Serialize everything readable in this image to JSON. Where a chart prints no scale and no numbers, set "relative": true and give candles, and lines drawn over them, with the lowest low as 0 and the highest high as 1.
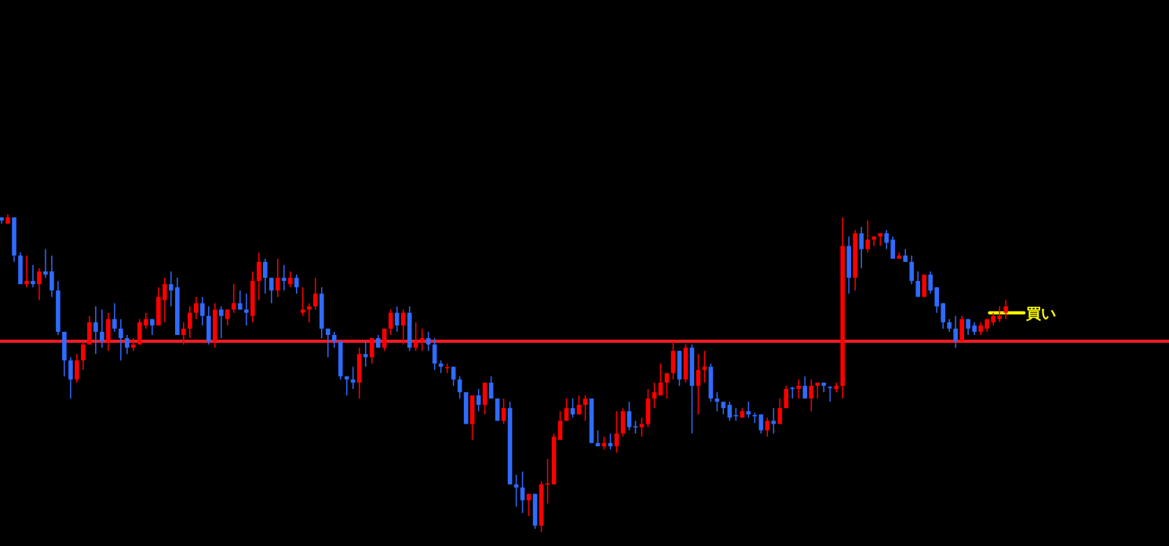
{
  "chart_data": {
    "type": "candlestick",
    "relative": true,
    "categories": [
      null,
      null,
      null,
      null,
      null,
      null,
      null,
      null,
      null,
      null,
      null,
      null,
      null,
      null,
      null,
      null,
      null,
      null,
      null,
      null,
      null,
      null,
      null,
      null,
      null,
      null,
      null,
      null,
      null,
      null,
      null,
      null,
      null,
      null,
      null,
      null,
      null,
      null,
      null,
      null,
      null,
      null,
      null,
      null,
      null,
      null,
      null,
      null,
      null,
      null,
      null,
      null,
      null,
      null,
      null,
      null,
      null,
      null,
      null,
      null,
      null,
      null,
      null,
      null,
      null,
      null,
      null,
      null,
      null,
      null,
      null,
      null,
      null,
      null,
      null,
      null,
      null,
      null,
      null,
      null,
      null,
      null,
      null,
      null,
      null,
      null,
      null,
      null,
      null,
      null,
      null,
      null,
      null,
      null,
      null,
      null,
      null,
      null,
      null,
      null,
      null,
      null,
      null,
      null,
      null,
      null,
      null,
      null,
      null,
      null,
      null,
      null,
      null,
      null,
      null,
      null,
      null,
      null,
      null,
      null,
      null,
      null,
      null,
      null,
      null,
      null,
      null,
      null,
      null,
      null,
      null,
      null,
      null,
      null,
      null,
      null,
      null,
      null,
      null,
      null,
      null,
      null,
      null,
      null,
      null,
      null,
      null,
      null,
      null,
      null,
      null,
      null,
      null,
      null,
      null,
      null,
      null,
      null,
      null,
      null,
      null
    ],
    "ohlc": [
      [
        0.99,
        0.99,
        0.97,
        0.98
      ],
      [
        0.97,
        1,
        0.97,
        0.99
      ],
      [
        0.99,
        0.99,
        0.85,
        0.87
      ],
      [
        0.87,
        0.88,
        0.78,
        0.78
      ],
      [
        0.78,
        0.87,
        0.77,
        0.79
      ],
      [
        0.79,
        0.84,
        0.77,
        0.78
      ],
      [
        0.78,
        0.83,
        0.73,
        0.82
      ],
      [
        0.82,
        0.89,
        0.8,
        0.81
      ],
      [
        0.82,
        0.87,
        0.74,
        0.76
      ],
      [
        0.76,
        0.79,
        0.62,
        0.63
      ],
      [
        0.63,
        0.63,
        0.49,
        0.54
      ],
      [
        0.54,
        0.55,
        0.42,
        0.48
      ],
      [
        0.48,
        0.56,
        0.47,
        0.54
      ],
      [
        0.54,
        0.6,
        0.51,
        0.59
      ],
      [
        0.59,
        0.68,
        0.59,
        0.66
      ],
      [
        0.66,
        0.71,
        0.56,
        0.63
      ],
      [
        0.63,
        0.7,
        0.58,
        0.6
      ],
      [
        0.6,
        0.69,
        0.57,
        0.67
      ],
      [
        0.67,
        0.72,
        0.63,
        0.64
      ],
      [
        0.64,
        0.67,
        0.54,
        0.61
      ],
      [
        0.61,
        0.62,
        0.56,
        0.58
      ],
      [
        0.58,
        0.61,
        0.57,
        0.59
      ],
      [
        0.59,
        0.67,
        0.59,
        0.66
      ],
      [
        0.65,
        0.69,
        0.64,
        0.67
      ],
      [
        0.67,
        0.67,
        0.62,
        0.65
      ],
      [
        0.65,
        0.77,
        0.65,
        0.74
      ],
      [
        0.73,
        0.8,
        0.66,
        0.78
      ],
      [
        0.78,
        0.82,
        0.71,
        0.76
      ],
      [
        0.77,
        0.8,
        0.62,
        0.62
      ],
      [
        0.62,
        0.66,
        0.59,
        0.64
      ],
      [
        0.64,
        0.71,
        0.61,
        0.69
      ],
      [
        0.69,
        0.74,
        0.67,
        0.72
      ],
      [
        0.72,
        0.74,
        0.65,
        0.68
      ],
      [
        0.68,
        0.71,
        0.59,
        0.6
      ],
      [
        0.6,
        0.72,
        0.58,
        0.7
      ],
      [
        0.7,
        0.71,
        0.61,
        0.68
      ],
      [
        0.67,
        0.7,
        0.65,
        0.7
      ],
      [
        0.7,
        0.78,
        0.69,
        0.72
      ],
      [
        0.72,
        0.76,
        0.7,
        0.7
      ],
      [
        0.7,
        0.75,
        0.65,
        0.69
      ],
      [
        0.68,
        0.82,
        0.66,
        0.79
      ],
      [
        0.79,
        0.88,
        0.73,
        0.85
      ],
      [
        0.85,
        0.86,
        0.75,
        0.8
      ],
      [
        0.8,
        0.8,
        0.72,
        0.76
      ],
      [
        0.76,
        0.86,
        0.74,
        0.8
      ],
      [
        0.8,
        0.84,
        0.76,
        0.79
      ],
      [
        0.78,
        0.82,
        0.77,
        0.8
      ],
      [
        0.8,
        0.81,
        0.75,
        0.77
      ],
      [
        0.69,
        0.77,
        0.68,
        0.7
      ],
      [
        0.7,
        0.72,
        0.66,
        0.71
      ],
      [
        0.71,
        0.8,
        0.7,
        0.75
      ],
      [
        0.75,
        0.77,
        0.61,
        0.64
      ],
      [
        0.64,
        0.64,
        0.55,
        0.62
      ],
      [
        0.62,
        0.63,
        0.58,
        0.6
      ],
      [
        0.6,
        0.6,
        0.48,
        0.49
      ],
      [
        0.49,
        0.49,
        0.43,
        0.48
      ],
      [
        0.48,
        0.52,
        0.45,
        0.47
      ],
      [
        0.47,
        0.58,
        0.42,
        0.56
      ],
      [
        0.56,
        0.6,
        0.52,
        0.55
      ],
      [
        0.55,
        0.61,
        0.53,
        0.61
      ],
      [
        0.61,
        0.62,
        0.58,
        0.58
      ],
      [
        0.58,
        0.64,
        0.57,
        0.64
      ],
      [
        0.64,
        0.7,
        0.62,
        0.69
      ],
      [
        0.69,
        0.71,
        0.63,
        0.65
      ],
      [
        0.65,
        0.7,
        0.59,
        0.69
      ],
      [
        0.69,
        0.71,
        0.57,
        0.58
      ],
      [
        0.58,
        0.66,
        0.57,
        0.6
      ],
      [
        0.6,
        0.64,
        0.57,
        0.61
      ],
      [
        0.61,
        0.63,
        0.57,
        0.59
      ],
      [
        0.59,
        0.61,
        0.51,
        0.53
      ],
      [
        0.53,
        0.54,
        0.5,
        0.52
      ],
      [
        0.516,
        0.53,
        0.5,
        0.519
      ],
      [
        0.52,
        0.52,
        0.46,
        0.48
      ],
      [
        0.48,
        0.49,
        0.42,
        0.44
      ],
      [
        0.44,
        0.44,
        0.34,
        0.34
      ],
      [
        0.34,
        0.43,
        0.29,
        0.43
      ],
      [
        0.43,
        0.45,
        0.38,
        0.4
      ],
      [
        0.4,
        0.47,
        0.37,
        0.47
      ],
      [
        0.47,
        0.49,
        0.42,
        0.42
      ],
      [
        0.42,
        0.42,
        0.35,
        0.35
      ],
      [
        0.35,
        0.42,
        0.34,
        0.39
      ],
      [
        0.39,
        0.41,
        0.15,
        0.15
      ],
      [
        0.15,
        0.18,
        0.08,
        0.14
      ],
      [
        0.14,
        0.19,
        0.06,
        0.1
      ],
      [
        0.1,
        0.12,
        0.05,
        0.12
      ],
      [
        0.12,
        0.12,
        0.01,
        0.02
      ],
      [
        0.02,
        0.16,
        0,
        0.15
      ],
      [
        0.151,
        0.23,
        0.09,
        0.153
      ],
      [
        0.15,
        0.31,
        0.15,
        0.3
      ],
      [
        0.29,
        0.38,
        0.29,
        0.35
      ],
      [
        0.35,
        0.42,
        0.35,
        0.39
      ],
      [
        0.39,
        0.42,
        0.36,
        0.37
      ],
      [
        0.37,
        0.43,
        0.37,
        0.4
      ],
      [
        0.4,
        0.43,
        0.35,
        0.42
      ],
      [
        0.42,
        0.42,
        0.28,
        0.28
      ],
      [
        0.28,
        0.32,
        0.27,
        0.27
      ],
      [
        0.27,
        0.3,
        0.26,
        0.28
      ],
      [
        0.28,
        0.31,
        0.26,
        0.27
      ],
      [
        0.27,
        0.38,
        0.25,
        0.31
      ],
      [
        0.31,
        0.39,
        0.3,
        0.38
      ],
      [
        0.38,
        0.41,
        0.32,
        0.33
      ],
      [
        0.333,
        0.35,
        0.31,
        0.331
      ],
      [
        0.33,
        0.36,
        0.3,
        0.34
      ],
      [
        0.34,
        0.45,
        0.33,
        0.42
      ],
      [
        0.42,
        0.47,
        0.39,
        0.44
      ],
      [
        0.43,
        0.53,
        0.43,
        0.47
      ],
      [
        0.47,
        0.5,
        0.42,
        0.5
      ],
      [
        0.5,
        0.6,
        0.48,
        0.57
      ],
      [
        0.57,
        0.57,
        0.46,
        0.48
      ],
      [
        0.48,
        0.59,
        0.47,
        0.58
      ],
      [
        0.58,
        0.59,
        0.31,
        0.46
      ],
      [
        0.46,
        0.56,
        0.37,
        0.51
      ],
      [
        0.51,
        0.57,
        0.47,
        0.52
      ],
      [
        0.52,
        0.53,
        0.41,
        0.42
      ],
      [
        0.42,
        0.44,
        0.38,
        0.41
      ],
      [
        0.41,
        0.41,
        0.37,
        0.39
      ],
      [
        0.4,
        0.41,
        0.35,
        0.36
      ],
      [
        0.368,
        0.39,
        0.35,
        0.365
      ],
      [
        0.36,
        0.39,
        0.36,
        0.38
      ],
      [
        0.38,
        0.41,
        0.36,
        0.37
      ],
      [
        0.368,
        0.375,
        0.343,
        0.365
      ],
      [
        0.37,
        0.37,
        0.31,
        0.32
      ],
      [
        0.32,
        0.36,
        0.3,
        0.35
      ],
      [
        0.35,
        0.39,
        0.31,
        0.34
      ],
      [
        0.34,
        0.42,
        0.34,
        0.39
      ],
      [
        0.39,
        0.46,
        0.39,
        0.45
      ],
      [
        0.454,
        0.457,
        0.42,
        0.452
      ],
      [
        0.45,
        0.48,
        0.42,
        0.46
      ],
      [
        0.46,
        0.49,
        0.42,
        0.42
      ],
      [
        0.42,
        0.48,
        0.38,
        0.46
      ],
      [
        0.46,
        0.47,
        0.42,
        0.47
      ],
      [
        0.47,
        0.47,
        0.44,
        0.46
      ],
      [
        0.457,
        0.459,
        0.41,
        0.454
      ],
      [
        0.45,
        0.47,
        0.44,
        0.46
      ],
      [
        0.46,
        0.99,
        0.42,
        0.9
      ],
      [
        0.9,
        0.93,
        0.75,
        0.8
      ],
      [
        0.8,
        0.95,
        0.76,
        0.94
      ],
      [
        0.94,
        0.96,
        0.83,
        0.89
      ],
      [
        0.89,
        0.98,
        0.88,
        0.92
      ],
      [
        0.92,
        0.93,
        0.9,
        0.93
      ],
      [
        0.93,
        0.94,
        0.9,
        0.94
      ],
      [
        0.94,
        0.95,
        0.89,
        0.91
      ],
      [
        0.92,
        0.93,
        0.86,
        0.86
      ],
      [
        0.86,
        0.88,
        0.86,
        0.87
      ],
      [
        0.87,
        0.89,
        0.85,
        0.85
      ],
      [
        0.85,
        0.87,
        0.78,
        0.79
      ],
      [
        0.79,
        0.82,
        0.74,
        0.74
      ],
      [
        0.74,
        0.81,
        0.74,
        0.81
      ],
      [
        0.81,
        0.82,
        0.75,
        0.76
      ],
      [
        0.77,
        0.77,
        0.69,
        0.71
      ],
      [
        0.72,
        0.72,
        0.64,
        0.66
      ],
      [
        0.66,
        0.67,
        0.63,
        0.64
      ],
      [
        0.64,
        0.68,
        0.58,
        0.6
      ],
      [
        0.6,
        0.68,
        0.6,
        0.67
      ],
      [
        0.67,
        0.67,
        0.62,
        0.64
      ],
      [
        0.65,
        0.66,
        0.62,
        0.63
      ],
      [
        0.63,
        0.66,
        0.62,
        0.65
      ],
      [
        0.64,
        0.67,
        0.63,
        0.67
      ],
      [
        0.66,
        0.69,
        0.65,
        0.68
      ],
      [
        0.67,
        0.71,
        0.66,
        0.68
      ],
      [
        0.69,
        0.73,
        0.67,
        0.71
      ]
    ],
    "ref_lines": [
      {
        "axis": "y",
        "value": 0.6,
        "color": "#ee1c25"
      },
      {
        "axis": "y",
        "value": 0.69,
        "color": "#ffff00",
        "label": "買い"
      }
    ]
  }
}
